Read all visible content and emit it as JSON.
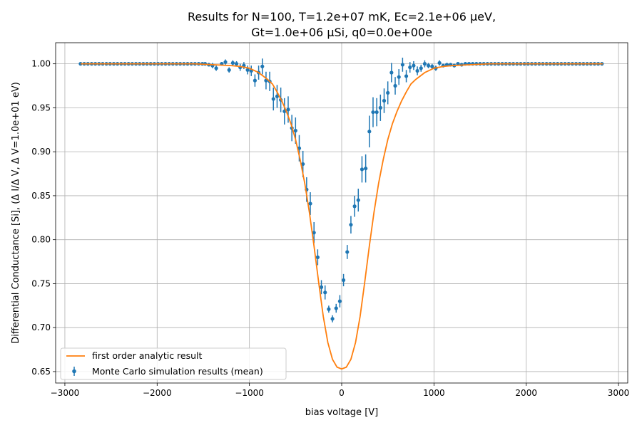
{
  "chart_data": {
    "type": "scatter",
    "title_line1": "Results for N=100, T=1.2e+07 mK, Ec=2.1e+06 μeV,",
    "title_line2": "Gt=1.0e+06 μSi, q0=0.0e+00e",
    "xlabel": "bias voltage [V]",
    "ylabel": "Differential Conductance [Si], (Δ I/Δ V, Δ V=1.0e+01 eV)",
    "xlim": [
      -3100,
      3100
    ],
    "ylim": [
      0.637,
      1.024
    ],
    "x_ticks": [
      -3000,
      -2000,
      -1000,
      0,
      1000,
      2000,
      3000
    ],
    "x_tick_labels": [
      "−3000",
      "−2000",
      "−1000",
      "0",
      "1000",
      "2000",
      "3000"
    ],
    "y_ticks": [
      0.65,
      0.7,
      0.75,
      0.8,
      0.85,
      0.9,
      0.95,
      1.0
    ],
    "y_tick_labels": [
      "0.65",
      "0.70",
      "0.75",
      "0.80",
      "0.85",
      "0.90",
      "0.95",
      "1.00"
    ],
    "grid": true,
    "legend_position": "lower-left",
    "series": [
      {
        "name": "first order analytic result",
        "kind": "line",
        "color": "#ff7f0e",
        "x": [
          -2830,
          -2000,
          -1600,
          -1400,
          -1200,
          -1100,
          -1000,
          -900,
          -800,
          -750,
          -700,
          -650,
          -600,
          -550,
          -500,
          -450,
          -400,
          -350,
          -300,
          -250,
          -200,
          -150,
          -100,
          -50,
          0,
          50,
          100,
          150,
          200,
          250,
          300,
          350,
          400,
          450,
          500,
          550,
          600,
          650,
          700,
          750,
          800,
          900,
          1000,
          1100,
          1200,
          1400,
          1600,
          2000,
          2830
        ],
        "y": [
          1.0,
          1.0,
          1.0,
          0.999,
          0.998,
          0.997,
          0.995,
          0.99,
          0.982,
          0.977,
          0.968,
          0.958,
          0.946,
          0.932,
          0.914,
          0.891,
          0.864,
          0.831,
          0.793,
          0.752,
          0.713,
          0.683,
          0.664,
          0.655,
          0.653,
          0.655,
          0.664,
          0.683,
          0.713,
          0.752,
          0.793,
          0.831,
          0.864,
          0.891,
          0.914,
          0.932,
          0.946,
          0.958,
          0.968,
          0.977,
          0.982,
          0.99,
          0.995,
          0.997,
          0.998,
          0.999,
          1.0,
          1.0,
          1.0
        ]
      },
      {
        "name": "Monte Carlo simulation results (mean)",
        "kind": "errorbar",
        "color": "#1f77b4",
        "x_start": -2830,
        "x_step": 40,
        "x_end": 2830,
        "points": [
          [
            -1480,
            1.0,
            0.002
          ],
          [
            -1440,
            0.999,
            0.002
          ],
          [
            -1400,
            0.998,
            0.003
          ],
          [
            -1360,
            0.995,
            0.003
          ],
          [
            -1300,
            1.0,
            0.002
          ],
          [
            -1260,
            1.002,
            0.003
          ],
          [
            -1220,
            0.993,
            0.003
          ],
          [
            -1180,
            1.001,
            0.003
          ],
          [
            -1140,
            1.0,
            0.003
          ],
          [
            -1100,
            0.996,
            0.004
          ],
          [
            -1060,
            0.998,
            0.004
          ],
          [
            -1020,
            0.993,
            0.005
          ],
          [
            -980,
            0.992,
            0.006
          ],
          [
            -940,
            0.981,
            0.007
          ],
          [
            -900,
            0.99,
            0.008
          ],
          [
            -860,
            0.997,
            0.009
          ],
          [
            -820,
            0.981,
            0.01
          ],
          [
            -780,
            0.98,
            0.011
          ],
          [
            -740,
            0.96,
            0.013
          ],
          [
            -700,
            0.963,
            0.013
          ],
          [
            -660,
            0.959,
            0.014
          ],
          [
            -620,
            0.946,
            0.015
          ],
          [
            -580,
            0.948,
            0.015
          ],
          [
            -540,
            0.927,
            0.015
          ],
          [
            -500,
            0.924,
            0.015
          ],
          [
            -460,
            0.904,
            0.015
          ],
          [
            -420,
            0.886,
            0.015
          ],
          [
            -380,
            0.857,
            0.014
          ],
          [
            -340,
            0.841,
            0.013
          ],
          [
            -300,
            0.808,
            0.012
          ],
          [
            -260,
            0.78,
            0.009
          ],
          [
            -220,
            0.746,
            0.008
          ],
          [
            -180,
            0.74,
            0.008
          ],
          [
            -140,
            0.721,
            0.004
          ],
          [
            -100,
            0.71,
            0.004
          ],
          [
            -60,
            0.722,
            0.005
          ],
          [
            -20,
            0.73,
            0.007
          ],
          [
            20,
            0.754,
            0.007
          ],
          [
            60,
            0.786,
            0.008
          ],
          [
            100,
            0.817,
            0.01
          ],
          [
            140,
            0.838,
            0.012
          ],
          [
            180,
            0.845,
            0.013
          ],
          [
            220,
            0.88,
            0.015
          ],
          [
            260,
            0.881,
            0.016
          ],
          [
            300,
            0.923,
            0.018
          ],
          [
            340,
            0.945,
            0.017
          ],
          [
            380,
            0.945,
            0.016
          ],
          [
            420,
            0.95,
            0.015
          ],
          [
            460,
            0.958,
            0.014
          ],
          [
            500,
            0.967,
            0.013
          ],
          [
            540,
            0.99,
            0.011
          ],
          [
            580,
            0.975,
            0.01
          ],
          [
            620,
            0.985,
            0.009
          ],
          [
            660,
            0.999,
            0.008
          ],
          [
            700,
            0.986,
            0.007
          ],
          [
            740,
            0.996,
            0.006
          ],
          [
            780,
            0.998,
            0.005
          ],
          [
            820,
            0.992,
            0.005
          ],
          [
            860,
            0.995,
            0.004
          ],
          [
            900,
            1.0,
            0.004
          ],
          [
            940,
            0.998,
            0.003
          ],
          [
            980,
            0.997,
            0.003
          ],
          [
            1020,
            0.995,
            0.003
          ],
          [
            1060,
            1.001,
            0.003
          ],
          [
            1100,
            0.998,
            0.002
          ],
          [
            1140,
            0.999,
            0.002
          ],
          [
            1180,
            0.999,
            0.002
          ],
          [
            1220,
            0.998,
            0.002
          ],
          [
            1260,
            1.0,
            0.002
          ],
          [
            1300,
            0.999,
            0.002
          ]
        ]
      }
    ]
  }
}
